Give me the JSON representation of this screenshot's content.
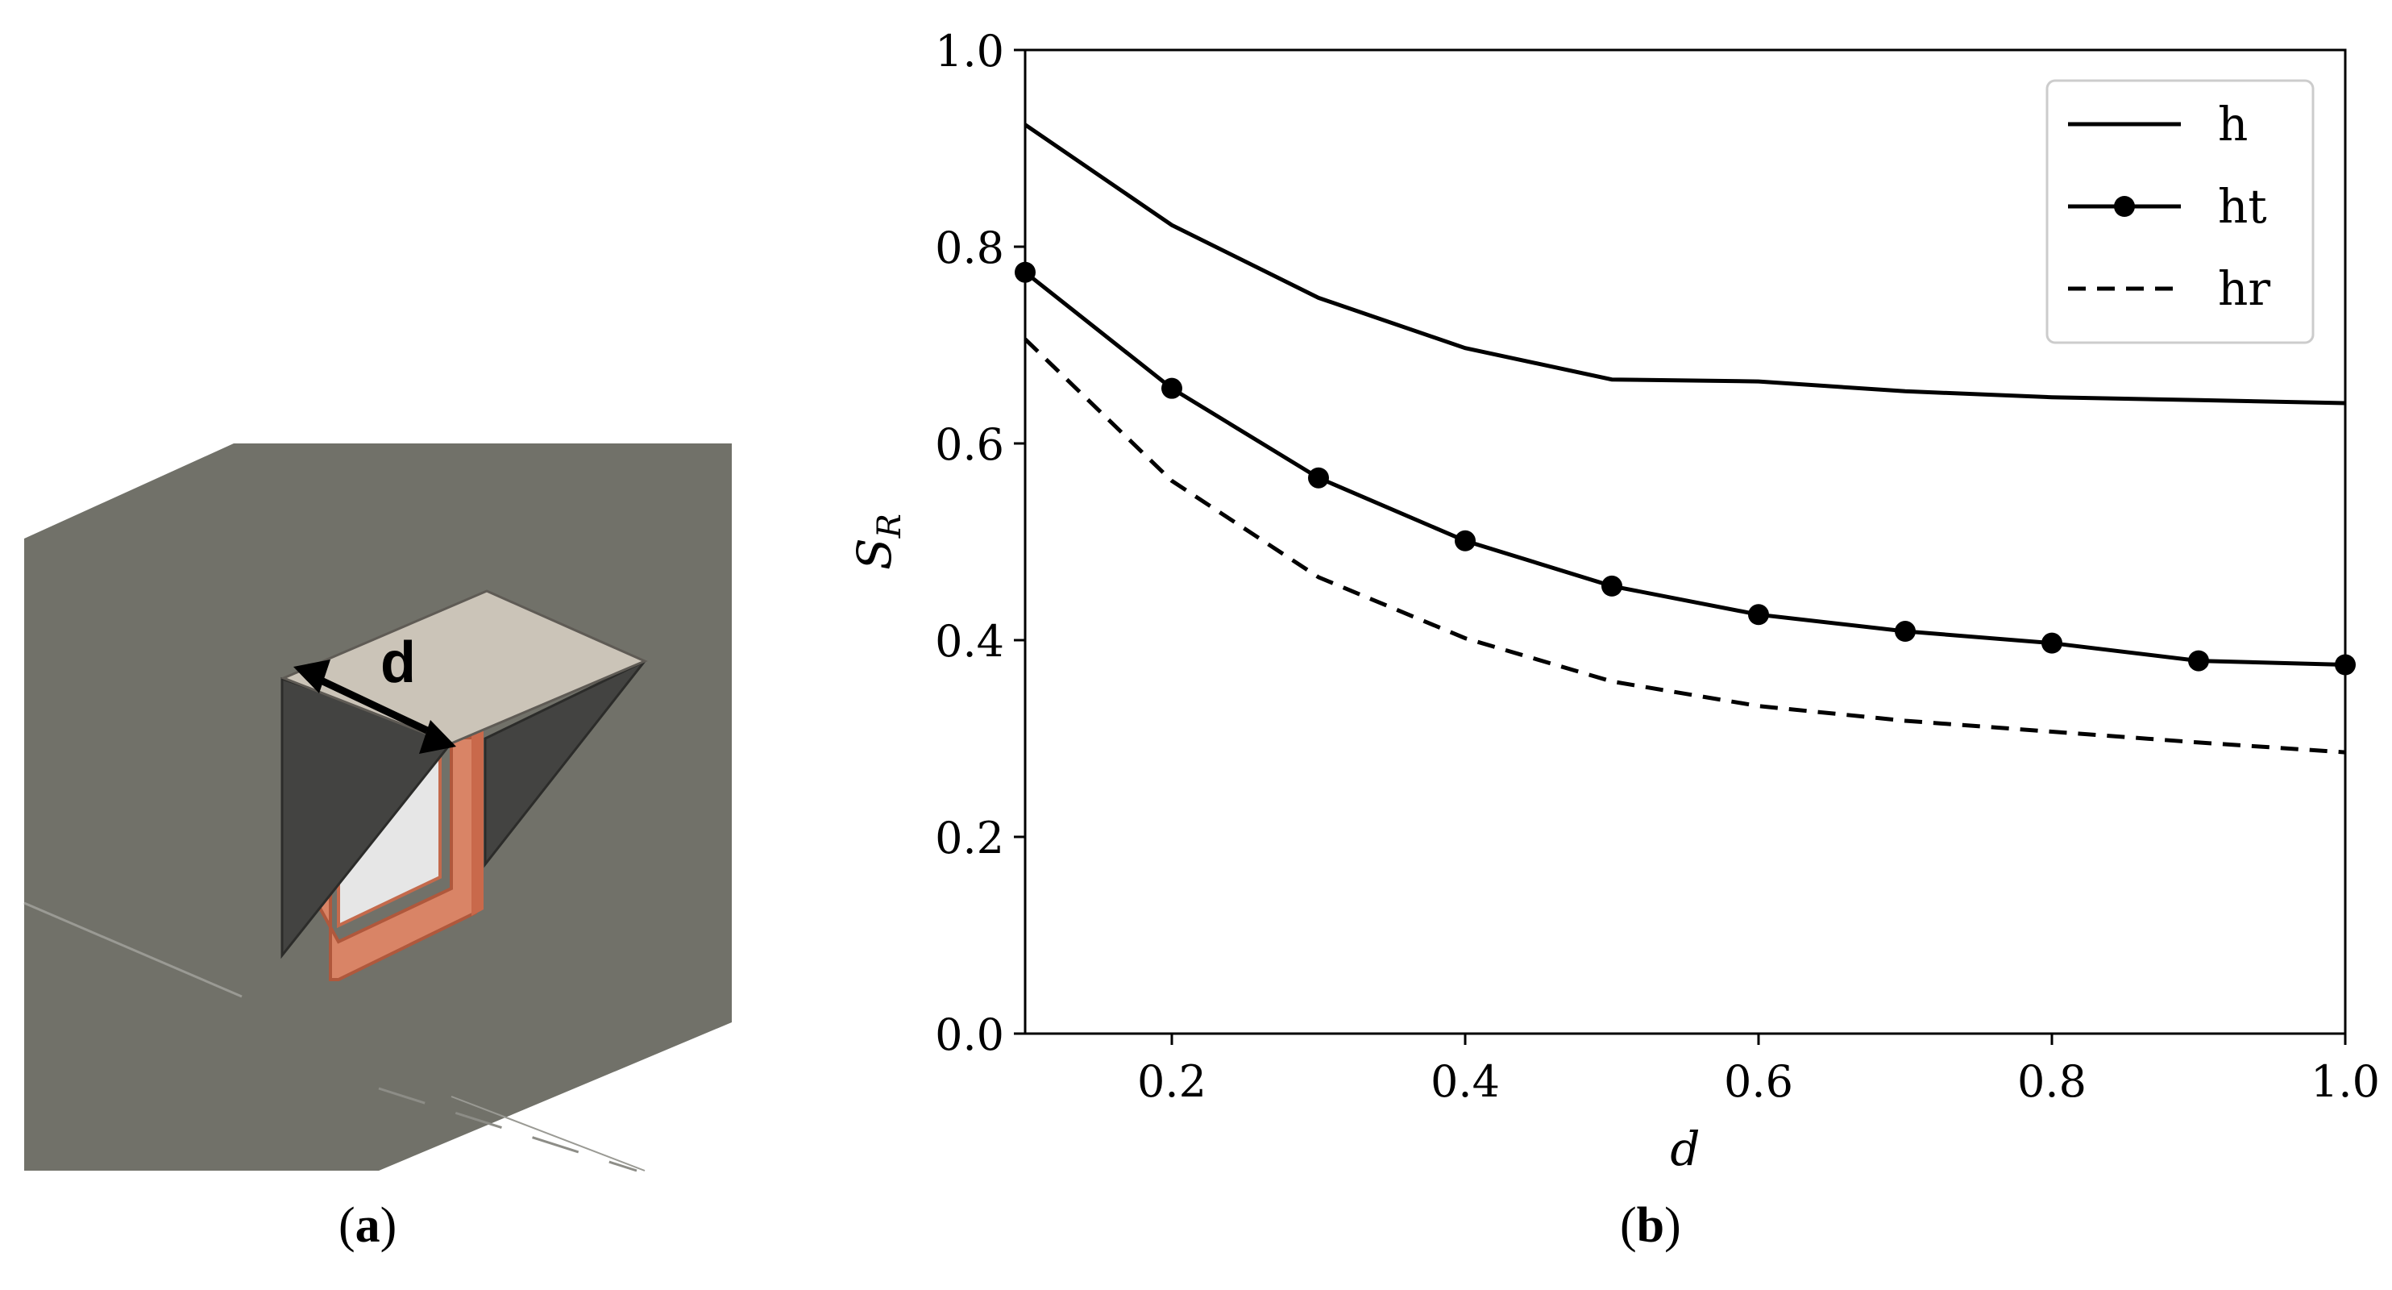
{
  "panels": {
    "a": {
      "caption_letter": "a",
      "dimension_label": "d"
    },
    "b": {
      "caption_letter": "b"
    }
  },
  "colors": {
    "wall": "#717169",
    "wall_top": "#cbc4b8",
    "fin": "#434341",
    "window_frame": "#d98466",
    "glass": "#e7e7e7",
    "ink": "#000000"
  },
  "chart_data": {
    "type": "line",
    "xlabel": "d",
    "ylabel": "S_R",
    "xlim": [
      0.1,
      1.0
    ],
    "ylim": [
      0.0,
      1.0
    ],
    "xticks": [
      "0.2",
      "0.4",
      "0.6",
      "0.8",
      "1.0"
    ],
    "yticks": [
      "0.0",
      "0.2",
      "0.4",
      "0.6",
      "0.8",
      "1.0"
    ],
    "grid": false,
    "legend_position": "top-right",
    "x": [
      0.1,
      0.2,
      0.3,
      0.4,
      0.5,
      0.6,
      0.7,
      0.8,
      0.9,
      1.0
    ],
    "series": [
      {
        "name": "h",
        "style": "solid",
        "marker": "none",
        "values": [
          0.924,
          0.822,
          0.748,
          0.697,
          0.665,
          0.663,
          0.653,
          0.647,
          0.644,
          0.641
        ]
      },
      {
        "name": "ht",
        "style": "solid",
        "marker": "circle",
        "values": [
          0.774,
          0.656,
          0.565,
          0.501,
          0.455,
          0.426,
          0.409,
          0.397,
          0.379,
          0.375
        ]
      },
      {
        "name": "hr",
        "style": "dashed",
        "marker": "none",
        "values": [
          0.706,
          0.562,
          0.464,
          0.402,
          0.358,
          0.333,
          0.318,
          0.307,
          0.296,
          0.286
        ]
      }
    ]
  }
}
